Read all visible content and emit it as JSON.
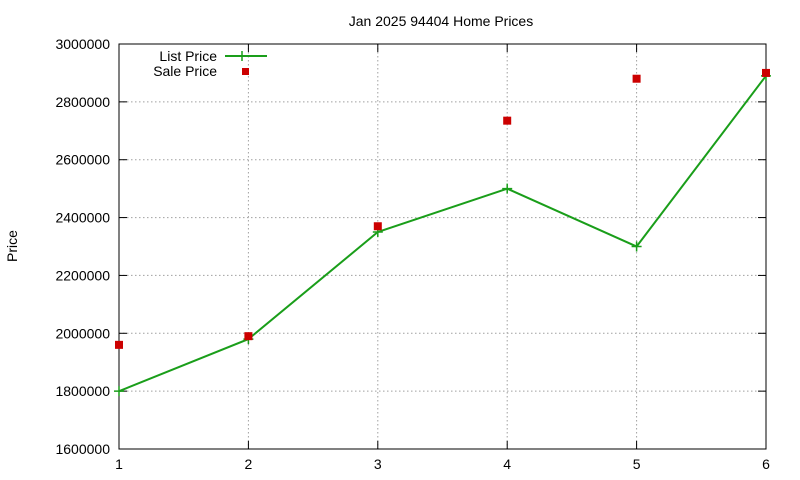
{
  "chart_data": {
    "type": "line",
    "title": "Jan 2025 94404 Home Prices",
    "xlabel": "",
    "ylabel": "Price",
    "x": [
      1,
      2,
      3,
      4,
      5,
      6
    ],
    "xlim": [
      1,
      6
    ],
    "ylim": [
      1600000,
      3000000
    ],
    "x_ticks": [
      "1",
      "2",
      "3",
      "4",
      "5",
      "6"
    ],
    "y_ticks": [
      "1600000",
      "1800000",
      "2000000",
      "2200000",
      "2400000",
      "2600000",
      "2800000",
      "3000000"
    ],
    "grid": true,
    "legend_position": "top-left",
    "series": [
      {
        "name": "List Price",
        "style": "line-with-plus-markers",
        "color": "#1a9e1a",
        "values": [
          1800000,
          1980000,
          2350000,
          2500000,
          2300000,
          2890000
        ]
      },
      {
        "name": "Sale Price",
        "style": "square-points",
        "color": "#cc0000",
        "values": [
          1960000,
          1990000,
          2370000,
          2735000,
          2880000,
          2900000
        ]
      }
    ]
  }
}
